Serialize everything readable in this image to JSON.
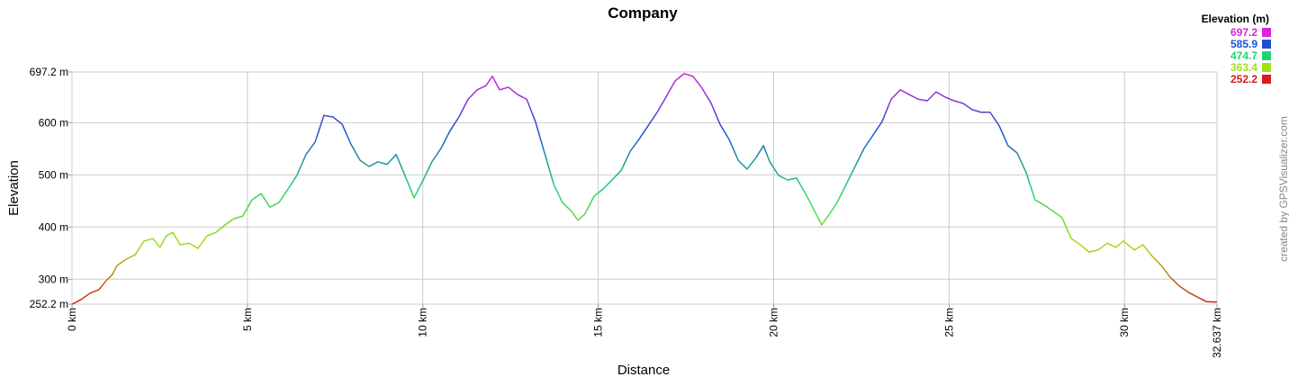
{
  "chart_data": {
    "type": "line",
    "title": "Company",
    "x_label": "Distance",
    "y_label": "Elevation",
    "credit": "created by GPSVisualizer.com",
    "xlim": [
      0,
      32.637
    ],
    "ylim": [
      252.2,
      697.2
    ],
    "xticks": [
      {
        "value": 0,
        "label": "0 km"
      },
      {
        "value": 5,
        "label": "5 km"
      },
      {
        "value": 10,
        "label": "10 km"
      },
      {
        "value": 15,
        "label": "15 km"
      },
      {
        "value": 20,
        "label": "20 km"
      },
      {
        "value": 25,
        "label": "25 km"
      },
      {
        "value": 30,
        "label": "30 km"
      },
      {
        "value": 32.637,
        "label": "32.637 km"
      }
    ],
    "yticks": [
      {
        "value": 252.2,
        "label": "252.2 m"
      },
      {
        "value": 300,
        "label": "300 m"
      },
      {
        "value": 400,
        "label": "400 m"
      },
      {
        "value": 500,
        "label": "500 m"
      },
      {
        "value": 600,
        "label": "600 m"
      },
      {
        "value": 697.2,
        "label": "697.2 m"
      }
    ],
    "grid": true,
    "color_scale": {
      "title": "Elevation (m)",
      "values": [
        697.2,
        585.9,
        474.7,
        363.4,
        252.2
      ],
      "colors": [
        "#dd22dd",
        "#1f4fd6",
        "#1fd46e",
        "#a8dc16",
        "#d41c1c"
      ]
    },
    "x": [
      0,
      0.26,
      0.51,
      0.77,
      0.97,
      1.15,
      1.28,
      1.54,
      1.8,
      2.05,
      2.31,
      2.51,
      2.69,
      2.87,
      3.08,
      3.34,
      3.59,
      3.85,
      4.11,
      4.36,
      4.62,
      4.87,
      5.13,
      5.39,
      5.64,
      5.9,
      6.16,
      6.41,
      6.67,
      6.93,
      7.18,
      7.44,
      7.7,
      7.95,
      8.21,
      8.47,
      8.72,
      8.98,
      9.24,
      9.49,
      9.75,
      10.01,
      10.26,
      10.52,
      10.78,
      11.03,
      11.29,
      11.55,
      11.8,
      11.98,
      12.19,
      12.44,
      12.7,
      12.96,
      13.21,
      13.47,
      13.73,
      13.98,
      14.24,
      14.42,
      14.62,
      14.88,
      15.14,
      15.39,
      15.65,
      15.91,
      16.16,
      16.42,
      16.68,
      16.93,
      17.19,
      17.45,
      17.7,
      17.96,
      18.22,
      18.47,
      18.73,
      18.99,
      19.24,
      19.5,
      19.71,
      19.89,
      20.14,
      20.4,
      20.65,
      20.91,
      21.17,
      21.37,
      21.55,
      21.81,
      22.07,
      22.32,
      22.58,
      22.84,
      23.09,
      23.35,
      23.61,
      23.86,
      24.12,
      24.38,
      24.63,
      24.89,
      25.14,
      25.4,
      25.66,
      25.91,
      26.17,
      26.43,
      26.68,
      26.94,
      27.2,
      27.45,
      27.71,
      27.97,
      28.22,
      28.48,
      28.74,
      28.99,
      29.25,
      29.51,
      29.76,
      29.97,
      30.28,
      30.53,
      30.79,
      31.05,
      31.3,
      31.56,
      31.82,
      32.07,
      32.33,
      32.637
    ],
    "values": [
      252,
      261,
      273,
      280,
      297,
      309,
      326,
      338,
      347,
      373,
      378,
      361,
      383,
      390,
      366,
      369,
      359,
      383,
      390,
      404,
      416,
      421,
      452,
      464,
      438,
      447,
      473,
      499,
      539,
      563,
      614,
      611,
      597,
      559,
      528,
      516,
      525,
      520,
      539,
      499,
      456,
      490,
      525,
      551,
      585,
      611,
      645,
      663,
      671,
      689,
      663,
      668,
      654,
      645,
      602,
      542,
      482,
      447,
      430,
      413,
      425,
      459,
      473,
      490,
      508,
      545,
      568,
      594,
      620,
      649,
      680,
      694,
      689,
      666,
      637,
      597,
      568,
      528,
      511,
      533,
      556,
      525,
      499,
      490,
      494,
      464,
      430,
      404,
      421,
      447,
      482,
      516,
      551,
      577,
      602,
      645,
      663,
      654,
      645,
      642,
      659,
      649,
      642,
      637,
      625,
      620,
      620,
      594,
      556,
      542,
      504,
      452,
      442,
      430,
      418,
      378,
      366,
      352,
      356,
      369,
      361,
      373,
      356,
      366,
      344,
      326,
      304,
      287,
      275,
      266,
      257,
      256
    ]
  }
}
